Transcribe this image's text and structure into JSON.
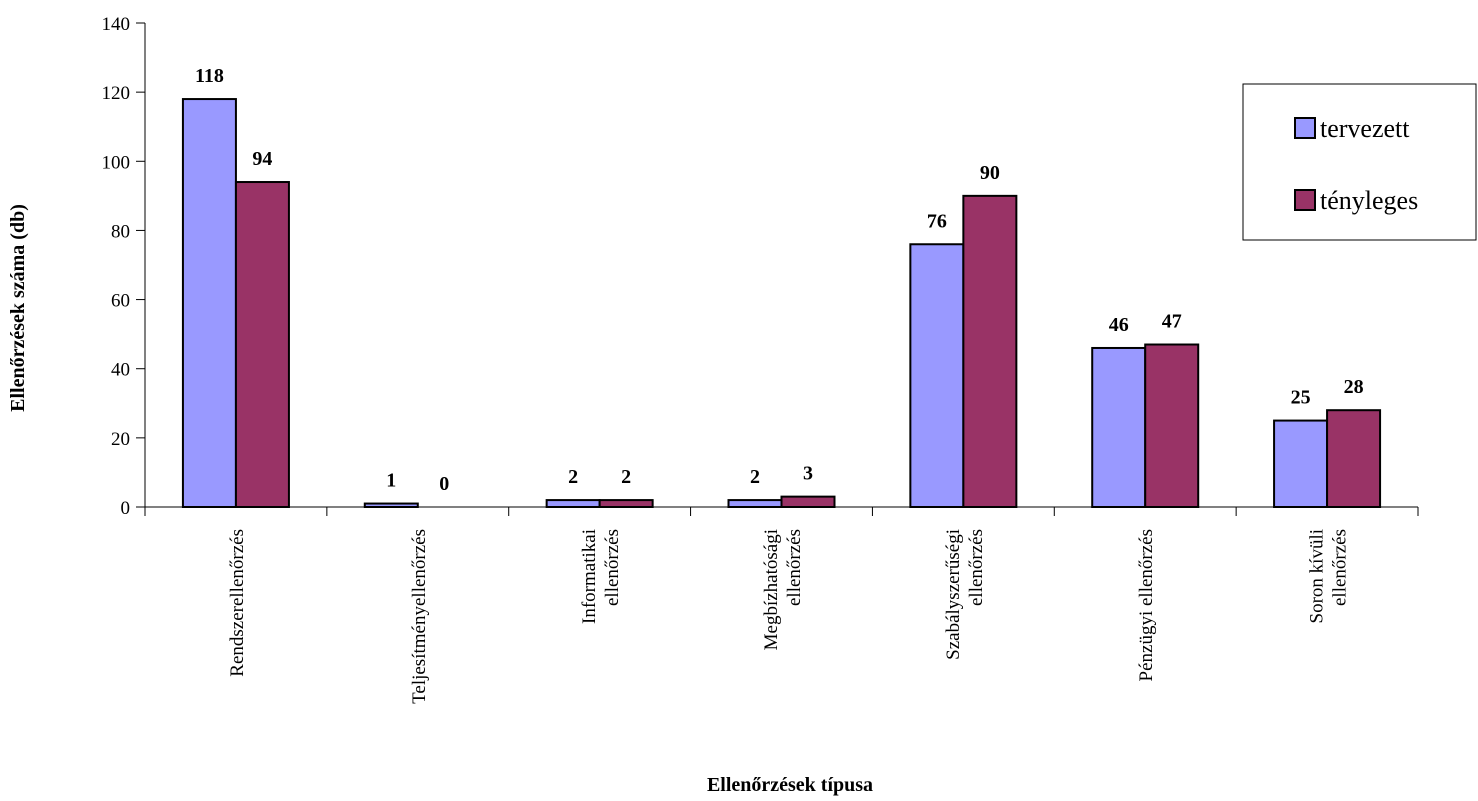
{
  "chart_data": {
    "type": "bar",
    "title": "",
    "xlabel": "Ellenőrzések típusa",
    "ylabel": "Ellenőrzések száma (db)",
    "ylim": [
      0,
      140
    ],
    "yticks": [
      0,
      20,
      40,
      60,
      80,
      100,
      120,
      140
    ],
    "grid": false,
    "legend_position": "right",
    "categories": [
      [
        "Rendszerellenőrzés"
      ],
      [
        "Teljesítményellenőrzés"
      ],
      [
        "Informatikai",
        "ellenőrzés"
      ],
      [
        "Megbízhatósági",
        "ellenőrzés"
      ],
      [
        "Szabályszerűségi",
        "ellenőrzés"
      ],
      [
        "Pénzügyi ellenőrzés"
      ],
      [
        "Soron kívüli",
        "ellenőrzés"
      ]
    ],
    "series": [
      {
        "name": "tervezett",
        "color": "#9999ff",
        "values": [
          118,
          1,
          2,
          2,
          76,
          46,
          25
        ]
      },
      {
        "name": "tényleges",
        "color": "#993366",
        "values": [
          94,
          0,
          2,
          3,
          90,
          47,
          28
        ]
      }
    ]
  }
}
